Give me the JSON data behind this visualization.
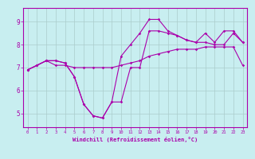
{
  "xlabel": "Windchill (Refroidissement éolien,°C)",
  "background_color": "#c8eef0",
  "line_color": "#aa00aa",
  "grid_color": "#aacccc",
  "x_hours": [
    0,
    1,
    2,
    3,
    4,
    5,
    6,
    7,
    8,
    9,
    10,
    11,
    12,
    13,
    14,
    15,
    16,
    17,
    18,
    19,
    20,
    21,
    22,
    23
  ],
  "line1": [
    6.9,
    7.1,
    7.3,
    7.1,
    7.1,
    7.0,
    7.0,
    7.0,
    7.0,
    7.0,
    7.1,
    7.2,
    7.3,
    7.5,
    7.6,
    7.7,
    7.8,
    7.8,
    7.8,
    7.9,
    7.9,
    7.9,
    7.9,
    7.1
  ],
  "line2": [
    6.9,
    7.1,
    7.3,
    7.3,
    7.2,
    6.6,
    5.4,
    4.9,
    4.8,
    5.5,
    5.5,
    7.0,
    7.0,
    8.6,
    8.6,
    8.5,
    8.4,
    8.2,
    8.1,
    8.1,
    8.0,
    8.0,
    8.5,
    8.1
  ],
  "line3": [
    6.9,
    7.1,
    7.3,
    7.3,
    7.2,
    6.6,
    5.4,
    4.9,
    4.8,
    5.5,
    7.5,
    8.0,
    8.5,
    9.1,
    9.1,
    8.6,
    8.4,
    8.2,
    8.1,
    8.5,
    8.1,
    8.6,
    8.6,
    8.1
  ],
  "ylim": [
    4.4,
    9.6
  ],
  "yticks": [
    5,
    6,
    7,
    8,
    9
  ],
  "xticks": [
    0,
    1,
    2,
    3,
    4,
    5,
    6,
    7,
    8,
    9,
    10,
    11,
    12,
    13,
    14,
    15,
    16,
    17,
    18,
    19,
    20,
    21,
    22,
    23
  ]
}
